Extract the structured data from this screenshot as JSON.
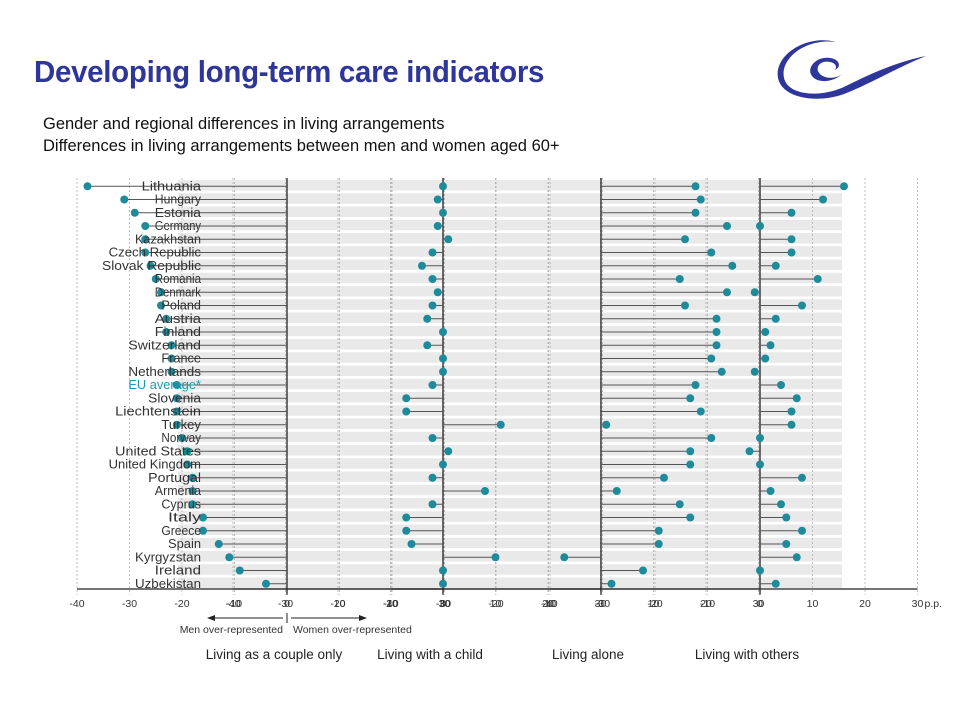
{
  "header": {
    "title": "Developing long-term care indicators",
    "subtitle_1": "Gender and regional differences in living arrangements",
    "subtitle_2": "Differences in living arrangements between men and women aged 60+"
  },
  "logo": {
    "icon": "council-of-europe-logo-icon",
    "color": "#2f3699"
  },
  "colors": {
    "marker": "#1f8a9a",
    "stripe": "#e9e9e9",
    "highlight_label": "#1f9ab0",
    "axis": "#222222",
    "grid": "#b0b0b0"
  },
  "chart_data": {
    "type": "scatter",
    "subtype": "dot-plot",
    "categories": [
      "Lithuania",
      "Hungary",
      "Estonia",
      "Germany",
      "Kazakhstan",
      "Czech Republic",
      "Slovak Republic",
      "Romania",
      "Denmark",
      "Poland",
      "Austria",
      "Finland",
      "Switzerland",
      "France",
      "Netherlands",
      "EU average*",
      "Slovenia",
      "Liechtenstein",
      "Turkey",
      "Norway",
      "United States",
      "United Kingdom",
      "Portugal",
      "Armenia",
      "Cyprus",
      "Italy",
      "Greece",
      "Spain",
      "Kyrgyzstan",
      "Ireland",
      "Uzbekistan"
    ],
    "highlight_category": "EU average*",
    "xlim": [
      -40,
      30
    ],
    "x_ticks": [
      -40,
      -30,
      -20,
      -10,
      0,
      10,
      20,
      30
    ],
    "x_tick_labels": [
      "-40",
      "-30",
      "-20",
      "-10",
      "0",
      "10",
      "20",
      "30"
    ],
    "unit_label": "p.p.",
    "legend_left": "Men over-represented",
    "legend_right": "Women over-represented",
    "series": [
      {
        "name": "Living as a couple only",
        "values": [
          -38,
          -31,
          -29,
          -27,
          -27,
          -27,
          -26,
          -25,
          -24,
          -24,
          -23,
          -23,
          -22,
          -22,
          -22,
          -21,
          -21,
          -21,
          -21,
          -20,
          -19,
          -19,
          -18,
          -18,
          -18,
          -16,
          -16,
          -13,
          -11,
          -9,
          -4
        ]
      },
      {
        "name": "Living with a child",
        "values": [
          0,
          -1,
          0,
          -1,
          1,
          -2,
          -4,
          -2,
          -1,
          -2,
          -3,
          0,
          -3,
          0,
          0,
          -2,
          -7,
          -7,
          11,
          -2,
          1,
          0,
          -2,
          8,
          -2,
          -7,
          -7,
          -6,
          10,
          0,
          0
        ]
      },
      {
        "name": "Living alone",
        "values": [
          18,
          19,
          18,
          24,
          16,
          21,
          25,
          15,
          24,
          16,
          22,
          22,
          22,
          21,
          23,
          18,
          17,
          19,
          1,
          21,
          17,
          17,
          12,
          3,
          15,
          17,
          11,
          11,
          -7,
          8,
          2
        ]
      },
      {
        "name": "Living with others",
        "values": [
          16,
          12,
          6,
          0,
          6,
          6,
          3,
          11,
          -1,
          8,
          3,
          1,
          2,
          1,
          -1,
          4,
          7,
          6,
          6,
          0,
          -2,
          0,
          8,
          2,
          4,
          5,
          8,
          5,
          7,
          0,
          3
        ]
      }
    ]
  }
}
